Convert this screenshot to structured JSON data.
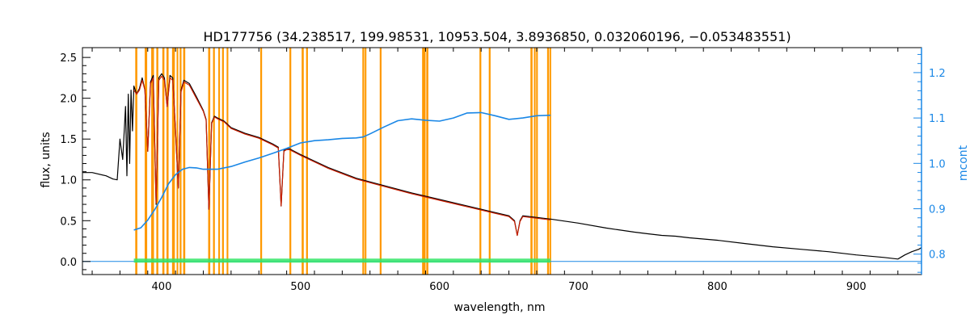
{
  "chart_data": {
    "type": "line",
    "title": "HD177756    (34.238517, 199.98531, 10953.504, 3.8936850, 0.032060196, −0.053483551)",
    "xlabel": "wavelength, nm",
    "ylabel": "flux, units",
    "y2label": "mcont",
    "xlim": [
      343,
      947
    ],
    "ylim": [
      -0.16,
      2.62
    ],
    "y2lim": [
      0.755,
      1.255
    ],
    "xticks": [
      400,
      500,
      600,
      700,
      800,
      900
    ],
    "yticks": [
      0.0,
      0.5,
      1.0,
      1.5,
      2.0,
      2.5
    ],
    "y2ticks": [
      0.8,
      0.9,
      1.0,
      1.1,
      1.2
    ],
    "xtick_labels": [
      "400",
      "500",
      "600",
      "700",
      "800",
      "900"
    ],
    "ytick_labels": [
      "0.0",
      "0.5",
      "1.0",
      "1.5",
      "2.0",
      "2.5"
    ],
    "y2tick_labels": [
      "0.8",
      "0.9",
      "1.0",
      "1.1",
      "1.2"
    ],
    "grid": false,
    "colors": {
      "observed": "#000000",
      "model": "#cc1f00",
      "mcont": "#1a87e6",
      "residual": "#33e666",
      "mask": "#ff9900",
      "right_axis": "#1a87e6"
    },
    "mask_bands": [
      [
        381.0,
        382.5
      ],
      [
        387.8,
        389.6
      ],
      [
        392.5,
        394.5
      ],
      [
        396.2,
        397.6
      ],
      [
        400.5,
        402.0
      ],
      [
        403.5,
        405.0
      ],
      [
        407.5,
        409.5
      ],
      [
        410.8,
        411.9
      ],
      [
        413.0,
        414.3
      ],
      [
        415.5,
        417.0
      ],
      [
        433.5,
        435.0
      ],
      [
        437.0,
        438.3
      ],
      [
        440.8,
        442.0
      ],
      [
        443.5,
        444.8
      ],
      [
        446.8,
        448.0
      ],
      [
        471.0,
        472.3
      ],
      [
        492.0,
        493.3
      ],
      [
        500.8,
        502.3
      ],
      [
        504.0,
        505.3
      ],
      [
        544.5,
        545.8
      ],
      [
        546.2,
        547.4
      ],
      [
        557.0,
        558.3
      ],
      [
        587.5,
        590.0
      ],
      [
        590.5,
        592.0
      ],
      [
        628.8,
        630.1
      ],
      [
        635.5,
        636.8
      ],
      [
        665.5,
        667.0
      ],
      [
        668.0,
        669.2
      ],
      [
        669.6,
        670.8
      ],
      [
        677.5,
        678.8
      ],
      [
        679.2,
        680.4
      ]
    ],
    "series": [
      {
        "key": "observed",
        "axis": "left",
        "x": [
          343,
          350,
          360,
          365,
          368,
          370,
          372,
          374,
          375,
          376,
          377,
          378,
          379,
          380,
          382,
          384,
          386,
          388,
          390,
          392,
          394,
          396,
          398,
          400,
          402,
          404,
          406,
          408,
          410,
          412,
          414,
          416,
          420,
          425,
          430,
          432,
          434,
          436,
          438,
          440,
          445,
          450,
          460,
          470,
          480,
          484,
          486,
          488,
          490,
          492,
          500,
          520,
          540,
          560,
          580,
          600,
          620,
          640,
          650,
          654,
          656,
          658,
          660,
          680,
          700,
          720,
          740,
          750,
          760,
          770,
          780,
          800,
          820,
          840,
          860,
          880,
          900,
          920,
          930,
          935,
          940,
          945,
          947
        ],
        "y": [
          1.09,
          1.09,
          1.05,
          1.01,
          1.0,
          1.5,
          1.25,
          1.9,
          1.05,
          2.05,
          1.2,
          2.1,
          1.6,
          2.15,
          2.05,
          2.12,
          2.25,
          2.1,
          1.35,
          2.2,
          2.28,
          0.7,
          2.25,
          2.3,
          2.25,
          1.9,
          2.28,
          2.25,
          1.6,
          0.9,
          2.1,
          2.22,
          2.18,
          2.02,
          1.85,
          1.74,
          0.64,
          1.7,
          1.78,
          1.76,
          1.72,
          1.64,
          1.57,
          1.52,
          1.44,
          1.4,
          0.68,
          1.36,
          1.38,
          1.38,
          1.31,
          1.15,
          1.02,
          0.93,
          0.84,
          0.76,
          0.68,
          0.6,
          0.56,
          0.5,
          0.32,
          0.5,
          0.56,
          0.52,
          0.47,
          0.41,
          0.36,
          0.34,
          0.32,
          0.31,
          0.29,
          0.26,
          0.22,
          0.18,
          0.15,
          0.12,
          0.08,
          0.05,
          0.03,
          0.08,
          0.12,
          0.15,
          0.17
        ]
      },
      {
        "key": "model",
        "axis": "left",
        "x": [
          380,
          382,
          384,
          386,
          388,
          390,
          392,
          394,
          396,
          398,
          400,
          402,
          404,
          406,
          408,
          410,
          412,
          414,
          416,
          420,
          425,
          430,
          432,
          434,
          436,
          438,
          440,
          445,
          450,
          460,
          470,
          480,
          484,
          486,
          488,
          490,
          492,
          500,
          520,
          540,
          560,
          580,
          600,
          620,
          640,
          650,
          654,
          656,
          658,
          660,
          680
        ],
        "y": [
          2.1,
          2.05,
          2.1,
          2.22,
          2.1,
          1.35,
          2.18,
          2.25,
          0.72,
          2.22,
          2.27,
          2.22,
          1.9,
          2.25,
          2.22,
          1.62,
          0.9,
          2.08,
          2.2,
          2.16,
          2.0,
          1.84,
          1.73,
          0.64,
          1.69,
          1.77,
          1.75,
          1.71,
          1.63,
          1.56,
          1.51,
          1.43,
          1.39,
          0.68,
          1.35,
          1.37,
          1.37,
          1.3,
          1.14,
          1.01,
          0.92,
          0.83,
          0.75,
          0.67,
          0.59,
          0.55,
          0.49,
          0.32,
          0.49,
          0.55,
          0.51
        ]
      },
      {
        "key": "mcont",
        "axis": "right",
        "x": [
          380,
          385,
          390,
          395,
          400,
          405,
          410,
          415,
          420,
          425,
          430,
          440,
          450,
          460,
          470,
          480,
          490,
          500,
          510,
          520,
          530,
          540,
          545,
          550,
          560,
          570,
          580,
          590,
          600,
          610,
          620,
          630,
          640,
          650,
          660,
          670,
          680
        ],
        "y": [
          0.853,
          0.858,
          0.875,
          0.898,
          0.925,
          0.955,
          0.975,
          0.987,
          0.991,
          0.99,
          0.987,
          0.987,
          0.993,
          1.003,
          1.012,
          1.022,
          1.033,
          1.045,
          1.05,
          1.052,
          1.055,
          1.056,
          1.058,
          1.065,
          1.08,
          1.094,
          1.098,
          1.095,
          1.093,
          1.1,
          1.111,
          1.112,
          1.105,
          1.097,
          1.1,
          1.105,
          1.106
        ]
      },
      {
        "key": "residual",
        "axis": "left",
        "x": [
          380,
          680
        ],
        "y": [
          0.01,
          0.01
        ]
      },
      {
        "key": "baseline",
        "axis": "left",
        "x": [
          343,
          947
        ],
        "y": [
          0.0,
          0.0
        ]
      }
    ]
  }
}
